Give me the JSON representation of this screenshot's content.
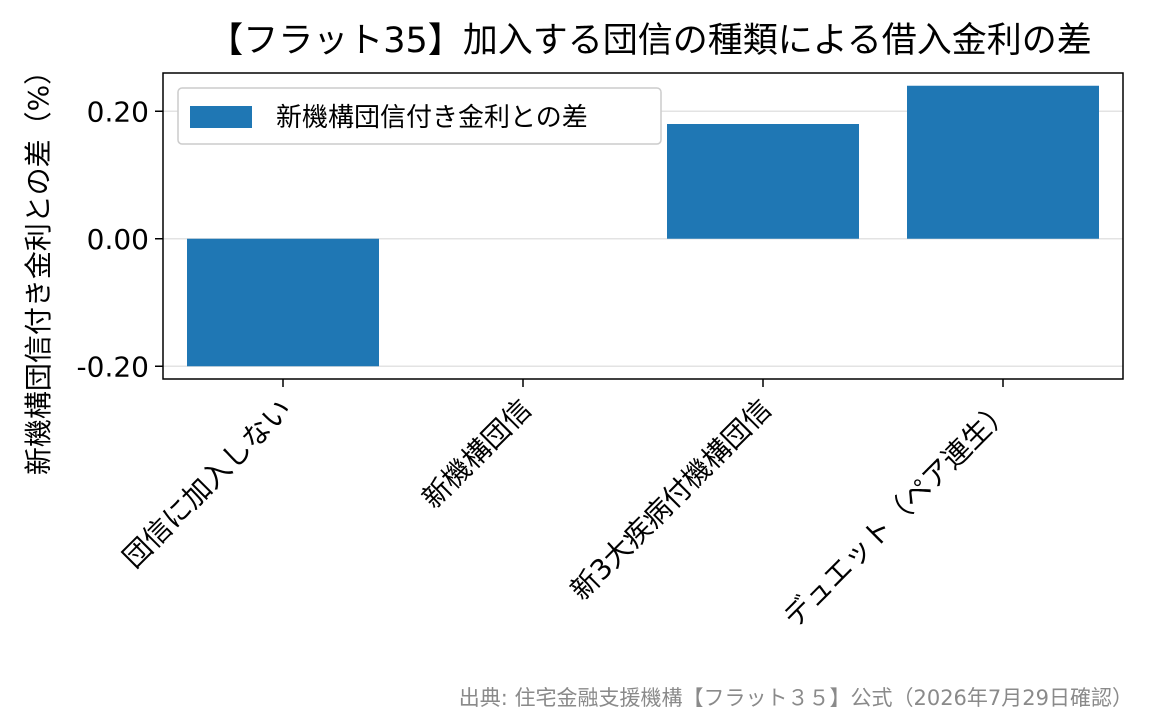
{
  "chart_data": {
    "type": "bar",
    "title": "【フラット35】加入する団信の種類による借入金利の差",
    "xlabel": "",
    "ylabel": "新機構団信付き金利との差（%）",
    "categories": [
      "団信に加入しない",
      "新機構団信",
      "新3大疾病付機構団信",
      "デュエット（ペア連生）"
    ],
    "series": [
      {
        "name": "新機構団信付き金利との差",
        "values": [
          -0.2,
          0.0,
          0.18,
          0.24
        ],
        "color": "#1f77b4"
      }
    ],
    "ylim": [
      -0.22,
      0.26
    ],
    "yticks": [
      -0.2,
      0.0,
      0.2
    ],
    "ytick_labels": [
      "-0.20",
      "0.00",
      "0.20"
    ],
    "grid": "horizontal",
    "legend": "upper-left",
    "source": "出典: 住宅金融支援機構【フラット３５】公式（2026年7月29日確認）"
  }
}
